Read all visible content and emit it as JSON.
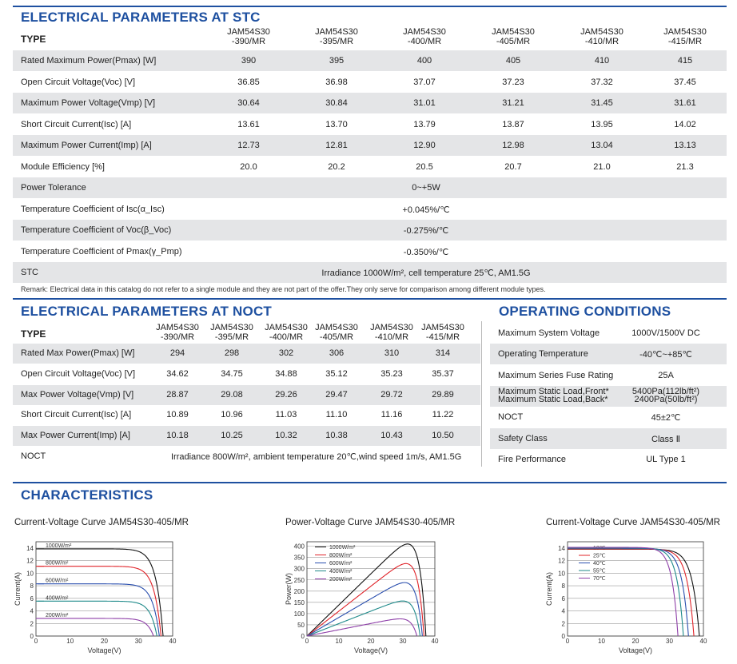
{
  "stc": {
    "title": "ELECTRICAL PARAMETERS AT STC",
    "type_label": "TYPE",
    "models": [
      [
        "JAM54S30",
        "-390/MR"
      ],
      [
        "JAM54S30",
        "-395/MR"
      ],
      [
        "JAM54S30",
        "-400/MR"
      ],
      [
        "JAM54S30",
        "-405/MR"
      ],
      [
        "JAM54S30",
        "-410/MR"
      ],
      [
        "JAM54S30",
        "-415/MR"
      ]
    ],
    "rows": [
      {
        "label": "Rated Maximum Power(Pmax) [W]",
        "values": [
          "390",
          "395",
          "400",
          "405",
          "410",
          "415"
        ]
      },
      {
        "label": "Open Circuit Voltage(Voc) [V]",
        "values": [
          "36.85",
          "36.98",
          "37.07",
          "37.23",
          "37.32",
          "37.45"
        ]
      },
      {
        "label": "Maximum Power Voltage(Vmp) [V]",
        "values": [
          "30.64",
          "30.84",
          "31.01",
          "31.21",
          "31.45",
          "31.61"
        ]
      },
      {
        "label": "Short Circuit Current(Isc) [A]",
        "values": [
          "13.61",
          "13.70",
          "13.79",
          "13.87",
          "13.95",
          "14.02"
        ]
      },
      {
        "label": "Maximum Power Current(Imp) [A]",
        "values": [
          "12.73",
          "12.81",
          "12.90",
          "12.98",
          "13.04",
          "13.13"
        ]
      },
      {
        "label": "Module Efficiency [%]",
        "values": [
          "20.0",
          "20.2",
          "20.5",
          "20.7",
          "21.0",
          "21.3"
        ]
      },
      {
        "label": "Power Tolerance",
        "span": "0~+5W"
      },
      {
        "label": "Temperature Coefficient of Isc(α_Isc)",
        "span": "+0.045%/℃"
      },
      {
        "label": "Temperature Coefficient of Voc(β_Voc)",
        "span": "-0.275%/℃"
      },
      {
        "label": "Temperature Coefficient of Pmax(γ_Pmp)",
        "span": "-0.350%/℃"
      },
      {
        "label": "STC",
        "span": "Irradiance 1000W/m², cell temperature 25℃, AM1.5G"
      }
    ],
    "remark": "Remark: Electrical data in this catalog do not refer to a single module and they are not part of the offer.They only serve for comparison among different module types."
  },
  "noct": {
    "title": "ELECTRICAL PARAMETERS AT NOCT",
    "type_label": "TYPE",
    "models": [
      [
        "JAM54S30",
        "-390/MR"
      ],
      [
        "JAM54S30",
        "-395/MR"
      ],
      [
        "JAM54S30",
        "-400/MR"
      ],
      [
        "JAM54S30",
        "-405/MR"
      ],
      [
        "JAM54S30",
        "-410/MR"
      ],
      [
        "JAM54S30",
        "-415/MR"
      ]
    ],
    "rows": [
      {
        "label": "Rated Max Power(Pmax) [W]",
        "values": [
          "294",
          "298",
          "302",
          "306",
          "310",
          "314"
        ]
      },
      {
        "label": "Open Circuit Voltage(Voc) [V]",
        "values": [
          "34.62",
          "34.75",
          "34.88",
          "35.12",
          "35.23",
          "35.37"
        ]
      },
      {
        "label": "Max Power Voltage(Vmp) [V]",
        "values": [
          "28.87",
          "29.08",
          "29.26",
          "29.47",
          "29.72",
          "29.89"
        ]
      },
      {
        "label": "Short Circuit Current(Isc) [A]",
        "values": [
          "10.89",
          "10.96",
          "11.03",
          "11.10",
          "11.16",
          "11.22"
        ]
      },
      {
        "label": "Max Power Current(Imp) [A]",
        "values": [
          "10.18",
          "10.25",
          "10.32",
          "10.38",
          "10.43",
          "10.50"
        ]
      },
      {
        "label": "NOCT",
        "span": "Irradiance 800W/m², ambient temperature 20℃,wind speed 1m/s, AM1.5G"
      }
    ]
  },
  "operating": {
    "title": "OPERATING CONDITIONS",
    "rows": [
      {
        "label": "Maximum System Voltage",
        "value": "1000V/1500V DC"
      },
      {
        "label": "Operating Temperature",
        "value": "-40℃~+85℃"
      },
      {
        "label": "Maximum Series Fuse Rating",
        "value": "25A"
      },
      {
        "label": "Maximum Static Load,Front*",
        "label2": "Maximum Static Load,Back*",
        "value": "5400Pa(112lb/ft²)",
        "value2": "2400Pa(50lb/ft²)"
      },
      {
        "label": "NOCT",
        "value": "45±2℃"
      },
      {
        "label": "Safety Class",
        "value": "Class Ⅱ"
      },
      {
        "label": "Fire Performance",
        "value": "UL Type 1"
      }
    ]
  },
  "characteristics": {
    "title": "CHARACTERISTICS"
  },
  "chart_data": [
    {
      "type": "line",
      "title": "Current-Voltage Curve   JAM54S30-405/MR",
      "xlabel": "Voltage(V)",
      "ylabel": "Current(A)",
      "xlim": [
        0,
        40
      ],
      "ylim": [
        0,
        15
      ],
      "xticks": [
        "0",
        "10",
        "20",
        "30",
        "40"
      ],
      "yticks": [
        "0",
        "2",
        "4",
        "6",
        "8",
        "10",
        "12",
        "14"
      ],
      "series": [
        {
          "name": "1000W/m²",
          "color": "#111111",
          "isc": 13.87,
          "voc": 37.2
        },
        {
          "name": "800W/m²",
          "color": "#e0242a",
          "isc": 11.1,
          "voc": 36.6
        },
        {
          "name": "600W/m²",
          "color": "#2a4fae",
          "isc": 8.3,
          "voc": 36.1
        },
        {
          "name": "400W/m²",
          "color": "#1f8a8a",
          "isc": 5.55,
          "voc": 35.4
        },
        {
          "name": "200W/m²",
          "color": "#8e3fa8",
          "isc": 2.8,
          "voc": 34.4
        }
      ]
    },
    {
      "type": "line",
      "title": "Power-Voltage Curve   JAM54S30-405/MR",
      "xlabel": "Voltage(V)",
      "ylabel": "Power(W)",
      "xlim": [
        0,
        40
      ],
      "ylim": [
        0,
        420
      ],
      "xticks": [
        "0",
        "10",
        "20",
        "30",
        "40"
      ],
      "yticks": [
        "0",
        "50",
        "100",
        "150",
        "200",
        "250",
        "300",
        "350",
        "400"
      ],
      "series": [
        {
          "name": "1000W/m²",
          "color": "#111111",
          "isc": 13.87,
          "voc": 37.2
        },
        {
          "name": "800W/m²",
          "color": "#e0242a",
          "isc": 11.1,
          "voc": 36.6
        },
        {
          "name": "600W/m²",
          "color": "#2a4fae",
          "isc": 8.3,
          "voc": 36.1
        },
        {
          "name": "400W/m²",
          "color": "#1f8a8a",
          "isc": 5.55,
          "voc": 35.4
        },
        {
          "name": "200W/m²",
          "color": "#8e3fa8",
          "isc": 2.8,
          "voc": 34.4
        }
      ]
    },
    {
      "type": "line",
      "title": "Current-Voltage Curve   JAM54S30-405/MR",
      "xlabel": "Voltage(V)",
      "ylabel": "Current(A)",
      "xlim": [
        0,
        40
      ],
      "ylim": [
        0,
        15
      ],
      "xticks": [
        "0",
        "10",
        "20",
        "30",
        "40"
      ],
      "yticks": [
        "0",
        "2",
        "4",
        "6",
        "8",
        "10",
        "12",
        "14"
      ],
      "series": [
        {
          "name": "10℃",
          "color": "#111111",
          "isc": 13.82,
          "voc": 38.8
        },
        {
          "name": "25℃",
          "color": "#e0242a",
          "isc": 13.87,
          "voc": 37.2
        },
        {
          "name": "40℃",
          "color": "#2a4fae",
          "isc": 13.95,
          "voc": 35.6
        },
        {
          "name": "55℃",
          "color": "#1f8a8a",
          "isc": 14.02,
          "voc": 34.1
        },
        {
          "name": "70℃",
          "color": "#8e3fa8",
          "isc": 14.1,
          "voc": 32.5
        }
      ]
    }
  ]
}
